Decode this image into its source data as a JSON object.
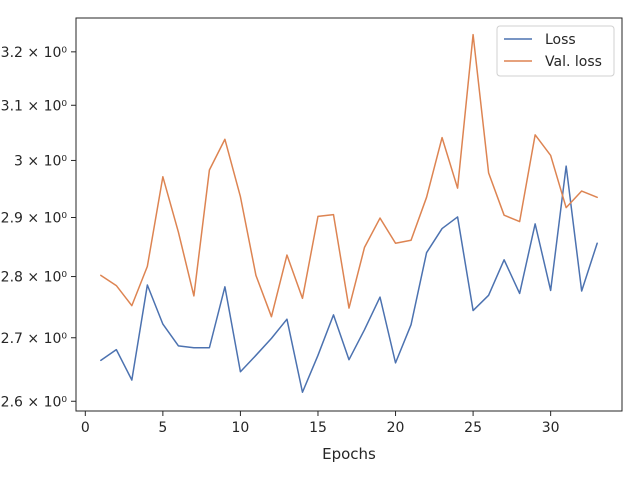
{
  "chart_data": {
    "type": "line",
    "xlabel": "Epochs",
    "ylabel": "",
    "yscale": "log",
    "xlim": [
      -0.6,
      34.6
    ],
    "ylim": [
      2.585,
      3.265
    ],
    "grid": false,
    "legend_position": "top-right",
    "x_ticks": [
      0,
      5,
      10,
      15,
      20,
      25,
      30
    ],
    "x_tick_labels": [
      "0",
      "5",
      "10",
      "15",
      "20",
      "25",
      "30"
    ],
    "y_ticks": [
      2.6,
      2.7,
      2.8,
      2.9,
      3.0,
      3.1,
      3.2
    ],
    "y_tick_labels": [
      "2.6 × 10⁰",
      "2.7 × 10⁰",
      "2.8 × 10⁰",
      "2.9 × 10⁰",
      "3 × 10⁰",
      "3.1 × 10⁰",
      "3.2 × 10⁰"
    ],
    "x": [
      1,
      2,
      3,
      4,
      5,
      6,
      7,
      8,
      9,
      10,
      11,
      12,
      13,
      14,
      15,
      16,
      17,
      18,
      19,
      20,
      21,
      22,
      23,
      24,
      25,
      26,
      27,
      28,
      29,
      30,
      31,
      32,
      33
    ],
    "series": [
      {
        "name": "Loss",
        "color": "#4c72b0",
        "values": [
          2.664,
          2.681,
          2.633,
          2.786,
          2.722,
          2.687,
          2.684,
          2.684,
          2.783,
          2.646,
          2.672,
          2.699,
          2.73,
          2.614,
          2.672,
          2.737,
          2.665,
          2.713,
          2.766,
          2.66,
          2.721,
          2.84,
          2.881,
          2.901,
          2.744,
          2.769,
          2.828,
          2.772,
          2.889,
          2.777,
          2.99,
          2.776,
          2.856
        ]
      },
      {
        "name": "Val. loss",
        "color": "#dd8452",
        "values": [
          2.802,
          2.785,
          2.752,
          2.817,
          2.971,
          2.875,
          2.768,
          2.983,
          3.038,
          2.936,
          2.802,
          2.734,
          2.836,
          2.764,
          2.902,
          2.905,
          2.748,
          2.849,
          2.899,
          2.856,
          2.861,
          2.935,
          3.041,
          2.951,
          3.233,
          2.978,
          2.904,
          2.893,
          3.046,
          3.009,
          2.917,
          2.946,
          2.935
        ]
      }
    ]
  }
}
